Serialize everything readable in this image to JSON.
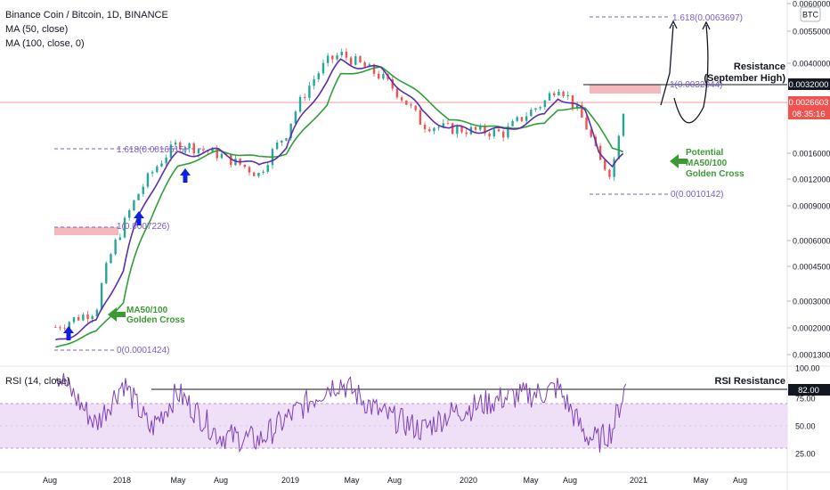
{
  "header": {
    "symbol_title": "Binance Coin / Bitcoin, 1D, BINANCE",
    "ma50_label": "MA (50, close)",
    "ma100_label": "MA (100, close, 0)",
    "currency_badge": "BTC"
  },
  "rsi_panel": {
    "label": "RSI (14, close)",
    "resistance_text": "RSI Resistance",
    "current_value": "82.00",
    "ticks": [
      "100.00",
      "75.00",
      "50.00",
      "25.00"
    ]
  },
  "annotations": {
    "resistance_title": "Resistance",
    "resistance_subtitle": "(September High)",
    "potential_cross": [
      "Potential",
      "MA50/100",
      "Golden Cross"
    ],
    "golden_cross": [
      "MA50/100",
      "Golden Cross"
    ]
  },
  "fib_labels": {
    "fib_a_1618": "1.618(0.0016515)",
    "fib_a_1": "1(0.0007226)",
    "fib_a_0": "0(0.0001424)",
    "fib_b_1618": "1.618(0.0063697)",
    "fib_b_1": "1(0.0032044)",
    "fib_b_0": "0(0.0010142)"
  },
  "price_axis": {
    "ticks": [
      "0.0060000",
      "0.0055000",
      "0.0040000",
      "0.0032000",
      "0.0026603",
      "0.0016000",
      "0.0012000",
      "0.0009000",
      "0.0006000",
      "0.0004500",
      "0.0003000",
      "0.0002000",
      "0.0001300"
    ],
    "resistance_price": "0.0032000",
    "current_price": "0.0026603",
    "countdown": "08:35:16"
  },
  "time_axis": {
    "labels": [
      "Aug",
      "2018",
      "May",
      "Aug",
      "2019",
      "May",
      "Aug",
      "2020",
      "May",
      "Aug",
      "2021",
      "May",
      "Aug"
    ]
  },
  "colors": {
    "ma50": "#5b2fa8",
    "ma100": "#2e9e3a",
    "candle_up": "#26a69a",
    "candle_down": "#ef5350",
    "rsi_line": "#7e3fb8",
    "rsi_band": "#efe0f7",
    "resistance_box": "#f5b8bc",
    "annotation_green": "#3c9a34",
    "arrow_blue": "#1020e0",
    "fib_line": "#7b5cc8",
    "price_badge_red": "#ef5350",
    "badge_black": "#131722"
  },
  "chart_data": {
    "type": "line",
    "x": [
      "2017-08",
      "2017-11",
      "2018-01",
      "2018-03",
      "2018-05",
      "2018-08",
      "2018-11",
      "2019-01",
      "2019-04",
      "2019-05",
      "2019-08",
      "2019-11",
      "2020-01",
      "2020-05",
      "2020-08",
      "2020-09",
      "2020-11",
      "2020-12",
      "2021-01",
      "2021-02"
    ],
    "series": [
      {
        "name": "Price",
        "values": [
          0.00018,
          0.00022,
          0.0006,
          0.0011,
          0.0016,
          0.0014,
          0.0011,
          0.0018,
          0.0042,
          0.0046,
          0.0035,
          0.002,
          0.0019,
          0.0018,
          0.0026,
          0.0032,
          0.002,
          0.0013,
          0.0011,
          0.00266
        ]
      },
      {
        "name": "MA (50, close)",
        "values": [
          0.00015,
          0.00019,
          0.00035,
          0.0009,
          0.0014,
          0.00145,
          0.0012,
          0.0015,
          0.0033,
          0.0042,
          0.0038,
          0.0023,
          0.0019,
          0.00185,
          0.0022,
          0.0028,
          0.0023,
          0.0015,
          0.0012,
          0.0014
        ]
      },
      {
        "name": "MA (100, close, 0)",
        "values": [
          0.00014,
          0.00017,
          0.00024,
          0.00065,
          0.0012,
          0.00145,
          0.00135,
          0.0014,
          0.0025,
          0.0036,
          0.0039,
          0.0028,
          0.0021,
          0.0019,
          0.002,
          0.0024,
          0.0024,
          0.002,
          0.0015,
          0.0014
        ]
      },
      {
        "name": "RSI (14, close)",
        "values": [
          95,
          45,
          85,
          40,
          75,
          35,
          30,
          50,
          80,
          85,
          55,
          40,
          55,
          70,
          75,
          80,
          35,
          30,
          40,
          82
        ]
      }
    ],
    "ylim": [
      0.00012,
      0.0065
    ],
    "yscale": "log",
    "rsi_ylim": [
      0,
      100
    ],
    "legend": "top-left",
    "grid": false
  }
}
